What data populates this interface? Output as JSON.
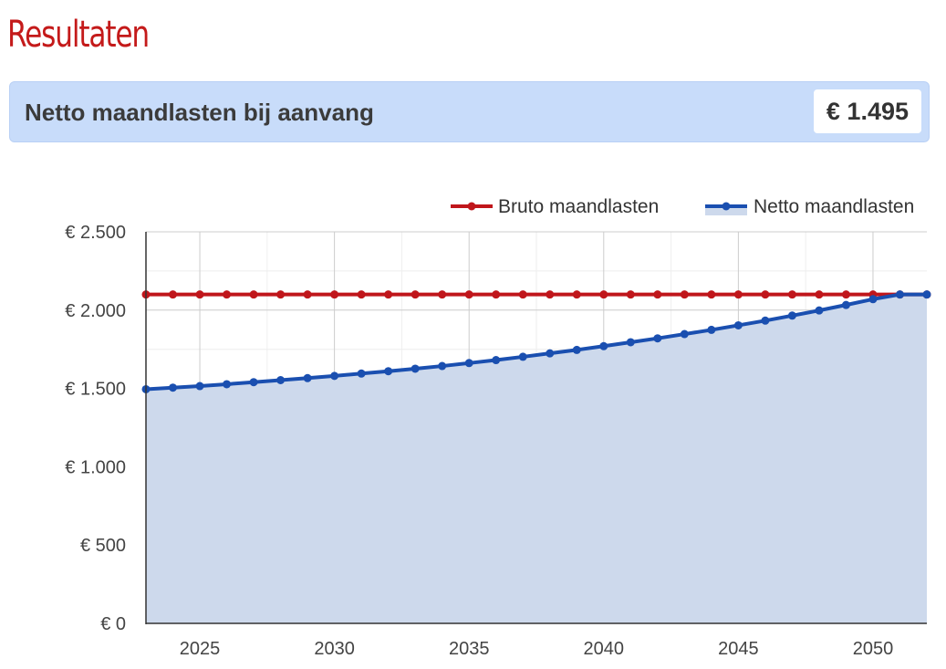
{
  "page": {
    "title": "Resultaten"
  },
  "result": {
    "label": "Netto maandlasten bij aanvang",
    "value": "€ 1.495"
  },
  "colors": {
    "title": "#c41a1a",
    "box_background": "#c8dcfa",
    "bruto": "#c0161b",
    "netto": "#1a4fb0",
    "netto_fill": "#cdd9ec"
  },
  "chart_data": {
    "type": "line",
    "title": "",
    "xlabel": "",
    "ylabel": "",
    "xlim": [
      2023,
      2052
    ],
    "ylim": [
      0,
      2500
    ],
    "x_ticks": [
      2025,
      2030,
      2035,
      2040,
      2045,
      2050
    ],
    "x_tick_labels": [
      "2025",
      "2030",
      "2035",
      "2040",
      "2045",
      "2050"
    ],
    "y_ticks": [
      0,
      500,
      1000,
      1500,
      2000,
      2500
    ],
    "y_tick_labels": [
      "€ 0",
      "€ 500",
      "€ 1.000",
      "€ 1.500",
      "€ 2.000",
      "€ 2.500"
    ],
    "grid": true,
    "legend_position": "top-right",
    "x": [
      2023,
      2024,
      2025,
      2026,
      2027,
      2028,
      2029,
      2030,
      2031,
      2032,
      2033,
      2034,
      2035,
      2036,
      2037,
      2038,
      2039,
      2040,
      2041,
      2042,
      2043,
      2044,
      2045,
      2046,
      2047,
      2048,
      2049,
      2050,
      2051,
      2052
    ],
    "series": [
      {
        "name": "Bruto maandlasten",
        "style": "line",
        "values": [
          2100,
          2100,
          2100,
          2100,
          2100,
          2100,
          2100,
          2100,
          2100,
          2100,
          2100,
          2100,
          2100,
          2100,
          2100,
          2100,
          2100,
          2100,
          2100,
          2100,
          2100,
          2100,
          2100,
          2100,
          2100,
          2100,
          2100,
          2100,
          2100,
          2100
        ]
      },
      {
        "name": "Netto maandlasten",
        "style": "area",
        "values": [
          1495,
          1505,
          1515,
          1527,
          1540,
          1553,
          1566,
          1580,
          1595,
          1610,
          1626,
          1643,
          1662,
          1681,
          1702,
          1724,
          1746,
          1770,
          1795,
          1820,
          1847,
          1874,
          1903,
          1933,
          1965,
          1998,
          2033,
          2070,
          2100,
          2100
        ]
      }
    ]
  }
}
